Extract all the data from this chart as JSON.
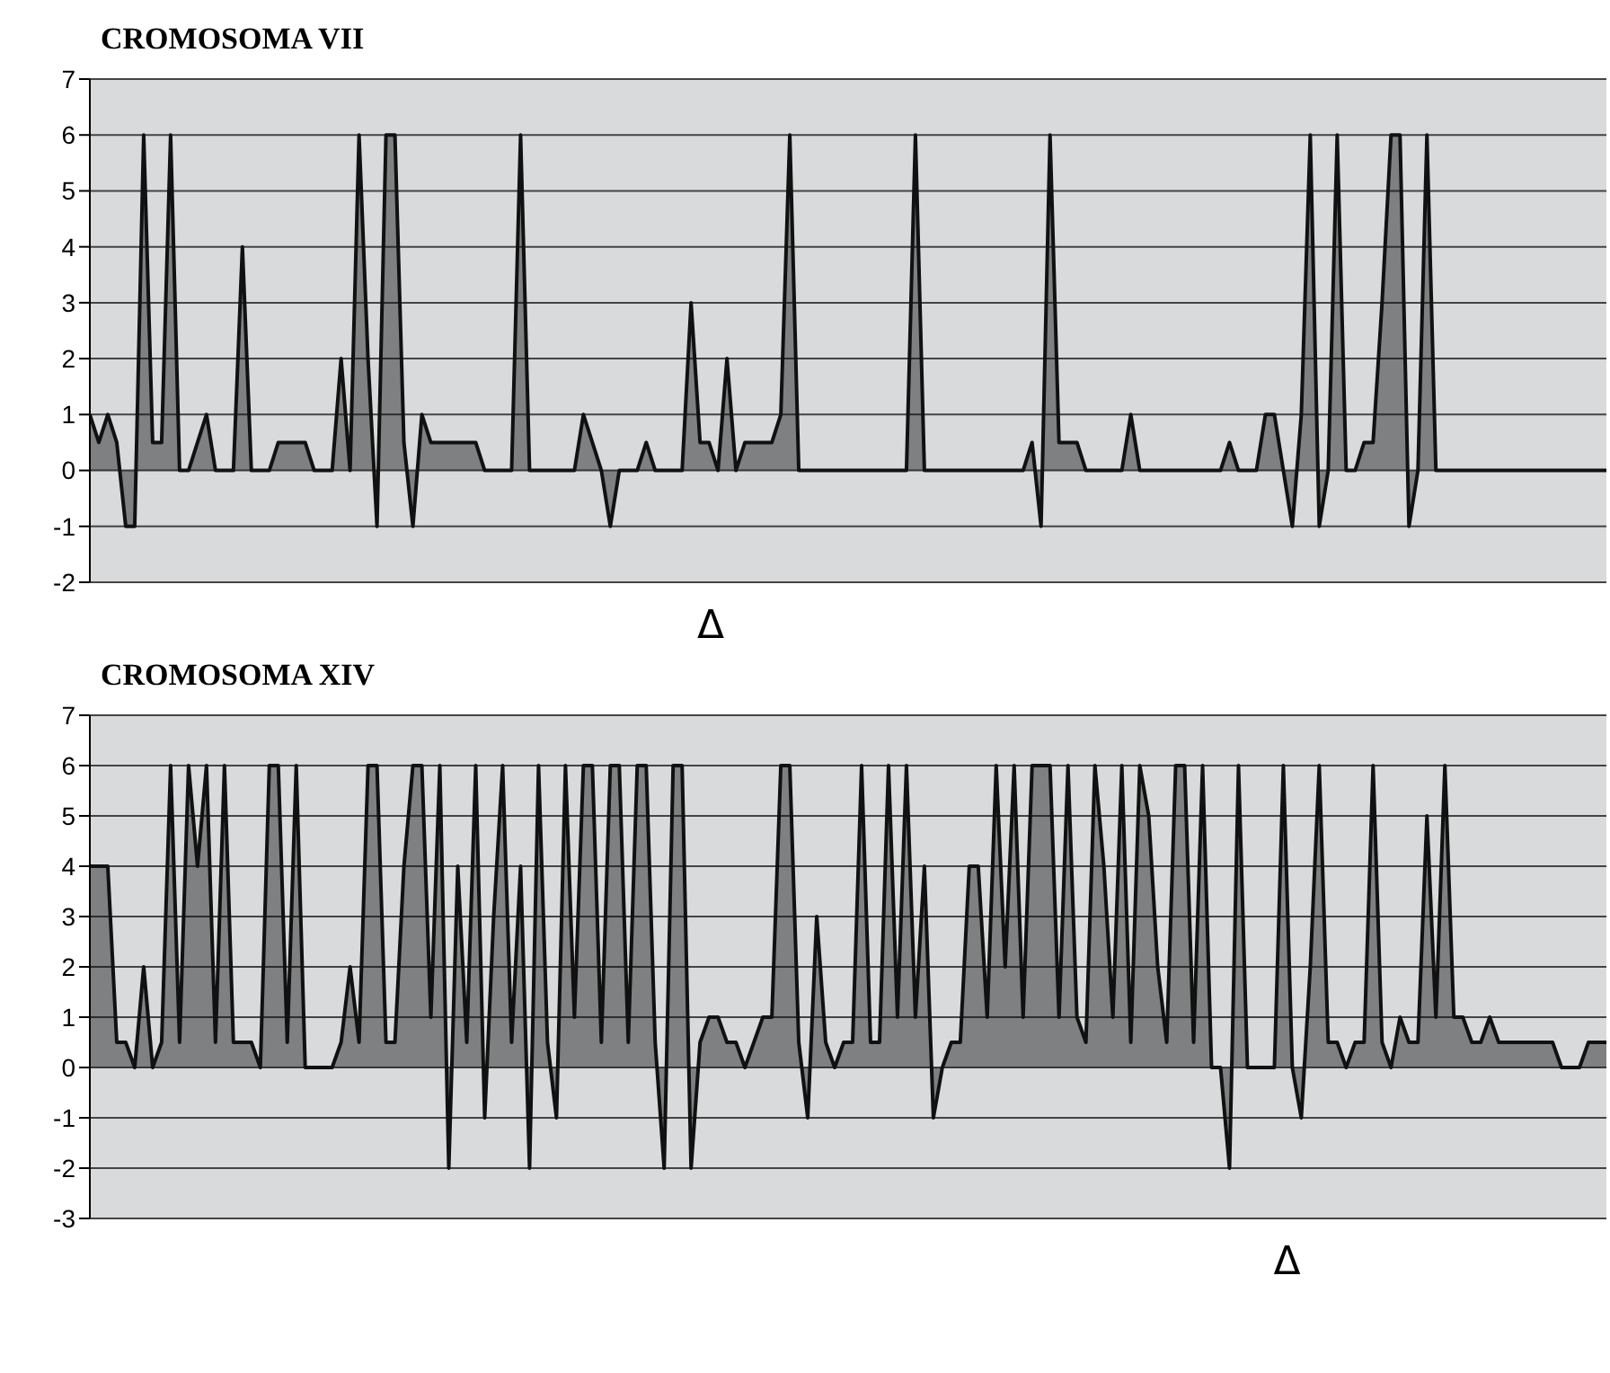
{
  "chart_data": [
    {
      "type": "area",
      "title": "CROMOSOMA VII",
      "annotations": [
        "Δ"
      ],
      "categories": [
        null,
        null,
        null,
        null,
        null,
        null,
        null,
        null,
        null,
        null,
        null,
        null,
        null,
        null,
        null,
        null,
        null,
        null,
        null,
        null,
        null,
        null,
        null,
        null,
        null,
        null,
        null,
        null,
        null,
        null,
        null,
        null,
        null,
        null,
        null,
        null,
        null,
        null,
        null,
        null,
        null,
        null,
        null,
        null,
        null,
        null,
        null,
        null,
        null,
        null,
        null,
        null,
        null,
        null,
        null,
        null,
        null,
        null,
        null,
        null,
        null,
        null,
        null,
        null,
        null,
        null,
        null,
        null,
        null,
        null,
        null,
        null,
        null,
        null,
        null,
        null,
        null,
        null,
        null,
        null,
        null,
        null,
        null,
        null,
        null,
        null,
        null,
        null,
        null,
        null,
        null,
        null,
        null,
        null,
        null,
        null,
        null,
        null,
        null,
        null,
        null,
        null,
        null,
        null,
        null,
        null,
        null,
        null,
        null,
        null,
        null,
        null,
        null,
        null,
        null,
        null,
        null,
        null,
        null,
        null,
        null,
        null,
        null,
        null,
        null,
        null,
        null,
        null,
        null,
        null,
        null,
        null,
        null,
        null,
        null,
        null,
        null,
        null,
        null,
        null,
        null,
        null,
        null,
        null,
        null,
        null,
        null,
        null,
        null,
        null,
        null,
        null,
        null,
        null,
        null,
        null,
        null,
        null,
        null,
        null,
        null,
        null,
        null,
        null,
        null,
        null,
        null,
        null,
        null,
        null
      ],
      "series": [
        {
          "color": "#111111",
          "values": [
            1,
            0.5,
            1,
            0.5,
            -1,
            -1,
            6,
            0.5,
            0.5,
            6,
            0,
            0,
            0.5,
            1,
            0,
            0,
            0,
            4,
            0,
            0,
            0,
            0.5,
            0.5,
            0.5,
            0.5,
            0,
            0,
            0,
            2,
            0,
            6,
            2,
            -1,
            6,
            6,
            0.5,
            -1,
            1,
            0.5,
            0.5,
            0.5,
            0.5,
            0.5,
            0.5,
            0,
            0,
            0,
            0,
            6,
            0,
            0,
            0,
            0,
            0,
            0,
            1,
            0.5,
            0,
            -1,
            0,
            0,
            0,
            0.5,
            0,
            0,
            0,
            0,
            3,
            0.5,
            0.5,
            0,
            2,
            0,
            0.5,
            0.5,
            0.5,
            0.5,
            1,
            6,
            0,
            0,
            0,
            0,
            0,
            0,
            0,
            0,
            0,
            0,
            0,
            0,
            0,
            6,
            0,
            0,
            0,
            0,
            0,
            0,
            0,
            0,
            0,
            0,
            0,
            0,
            0.5,
            -1,
            6,
            0.5,
            0.5,
            0.5,
            0,
            0,
            0,
            0,
            0,
            1,
            0,
            0,
            0,
            0,
            0,
            0,
            0,
            0,
            0,
            0,
            0.5,
            0,
            0,
            0,
            1,
            1,
            0,
            -1,
            1,
            6,
            -1,
            0,
            6,
            0,
            0,
            0.5,
            0.5,
            3,
            6,
            6,
            -1,
            0,
            6,
            0,
            0,
            0,
            0,
            0,
            0,
            0,
            0,
            0,
            0,
            0,
            0,
            0,
            0,
            0,
            0,
            0,
            0,
            0,
            0
          ]
        }
      ],
      "ylim": [
        -2,
        7
      ],
      "yticks": [
        -2,
        -1,
        0,
        1,
        2,
        3,
        4,
        5,
        6,
        7
      ],
      "grid": "y",
      "legend": false,
      "marker": "none",
      "tick_labels": "y"
    },
    {
      "type": "area",
      "title": "CROMOSOMA XIV",
      "annotations": [
        "Δ"
      ],
      "categories": [
        null,
        null,
        null,
        null,
        null,
        null,
        null,
        null,
        null,
        null,
        null,
        null,
        null,
        null,
        null,
        null,
        null,
        null,
        null,
        null,
        null,
        null,
        null,
        null,
        null,
        null,
        null,
        null,
        null,
        null,
        null,
        null,
        null,
        null,
        null,
        null,
        null,
        null,
        null,
        null,
        null,
        null,
        null,
        null,
        null,
        null,
        null,
        null,
        null,
        null,
        null,
        null,
        null,
        null,
        null,
        null,
        null,
        null,
        null,
        null,
        null,
        null,
        null,
        null,
        null,
        null,
        null,
        null,
        null,
        null,
        null,
        null,
        null,
        null,
        null,
        null,
        null,
        null,
        null,
        null,
        null,
        null,
        null,
        null,
        null,
        null,
        null,
        null,
        null,
        null,
        null,
        null,
        null,
        null,
        null,
        null,
        null,
        null,
        null,
        null,
        null,
        null,
        null,
        null,
        null,
        null,
        null,
        null,
        null,
        null,
        null,
        null,
        null,
        null,
        null,
        null,
        null,
        null,
        null,
        null,
        null,
        null,
        null,
        null,
        null,
        null,
        null,
        null,
        null,
        null,
        null,
        null,
        null,
        null,
        null,
        null,
        null,
        null,
        null,
        null,
        null,
        null,
        null,
        null,
        null,
        null,
        null,
        null,
        null,
        null,
        null,
        null,
        null,
        null,
        null,
        null,
        null,
        null,
        null,
        null,
        null,
        null,
        null,
        null,
        null,
        null,
        null,
        null,
        null,
        null
      ],
      "series": [
        {
          "color": "#111111",
          "values": [
            4,
            4,
            4,
            0.5,
            0.5,
            0,
            2,
            0,
            0.5,
            6,
            0.5,
            6,
            4,
            6,
            0.5,
            6,
            0.5,
            0.5,
            0.5,
            0,
            6,
            6,
            0.5,
            6,
            0,
            0,
            0,
            0,
            0.5,
            2,
            0.5,
            6,
            6,
            0.5,
            0.5,
            4,
            6,
            6,
            1,
            6,
            -2,
            4,
            0.5,
            6,
            -1,
            3,
            6,
            0.5,
            4,
            -2,
            6,
            0.5,
            -1,
            6,
            1,
            6,
            6,
            0.5,
            6,
            6,
            0.5,
            6,
            6,
            0.5,
            -2,
            6,
            6,
            -2,
            0.5,
            1,
            1,
            0.5,
            0.5,
            0,
            0.5,
            1,
            1,
            6,
            6,
            0.5,
            -1,
            3,
            0.5,
            0,
            0.5,
            0.5,
            6,
            0.5,
            0.5,
            6,
            1,
            6,
            1,
            4,
            -1,
            0,
            0.5,
            0.5,
            4,
            4,
            1,
            6,
            2,
            6,
            1,
            6,
            6,
            6,
            1,
            6,
            1,
            0.5,
            6,
            4,
            1,
            6,
            0.5,
            6,
            5,
            2,
            0.5,
            6,
            6,
            0.5,
            6,
            0,
            0,
            -2,
            6,
            0,
            0,
            0,
            0,
            6,
            0,
            -1,
            2,
            6,
            0.5,
            0.5,
            0,
            0.5,
            0.5,
            6,
            0.5,
            0,
            1,
            0.5,
            0.5,
            5,
            1,
            6,
            1,
            1,
            0.5,
            0.5,
            1,
            0.5,
            0.5,
            0.5,
            0.5,
            0.5,
            0.5,
            0.5,
            0,
            0,
            0,
            0.5,
            0.5,
            0.5
          ]
        }
      ],
      "ylim": [
        -3,
        7
      ],
      "yticks": [
        -3,
        -2,
        -1,
        0,
        1,
        2,
        3,
        4,
        5,
        6,
        7
      ],
      "grid": "y",
      "legend": false,
      "marker": "none",
      "tick_labels": "y"
    }
  ]
}
